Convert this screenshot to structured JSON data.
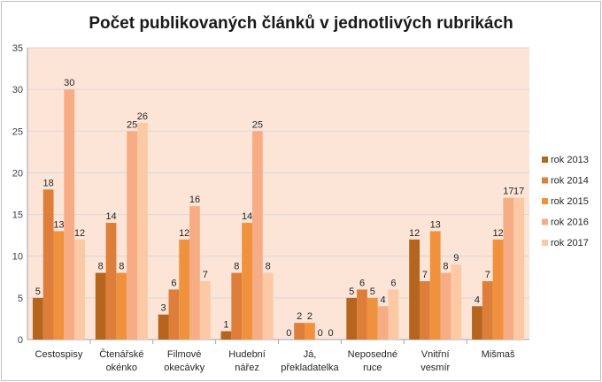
{
  "chart_data": {
    "type": "bar",
    "title": "Počet publikovaných článků v jednotlivých rubrikách",
    "xlabel": "",
    "ylabel": "",
    "ylim": [
      0,
      35
    ],
    "yticks": [
      0,
      5,
      10,
      15,
      20,
      25,
      30,
      35
    ],
    "grid": true,
    "legend_position": "right",
    "categories": [
      [
        "Cestospisy"
      ],
      [
        "Čtenářské",
        "okénko"
      ],
      [
        "Filmové",
        "okecávky"
      ],
      [
        "Hudební",
        "nářez"
      ],
      [
        "Já,",
        "překladatelka"
      ],
      [
        "Neposedné",
        "ruce"
      ],
      [
        "Vnitřní",
        "vesmír"
      ],
      [
        "Mišmaš"
      ]
    ],
    "series": [
      {
        "name": "rok 2013",
        "color": "#b5651d",
        "values": [
          5,
          8,
          3,
          1,
          0,
          5,
          12,
          4
        ]
      },
      {
        "name": "rok 2014",
        "color": "#dd7f3a",
        "values": [
          18,
          14,
          6,
          8,
          2,
          6,
          7,
          7
        ]
      },
      {
        "name": "rok 2015",
        "color": "#f0923d",
        "values": [
          13,
          8,
          12,
          14,
          2,
          5,
          13,
          12
        ]
      },
      {
        "name": "rok 2016",
        "color": "#f6ad86",
        "values": [
          30,
          25,
          16,
          25,
          0,
          4,
          8,
          17
        ]
      },
      {
        "name": "rok 2017",
        "color": "#fbc9a4",
        "values": [
          12,
          26,
          7,
          8,
          0,
          6,
          9,
          17
        ]
      }
    ],
    "plot_background": "#fce4d6"
  }
}
